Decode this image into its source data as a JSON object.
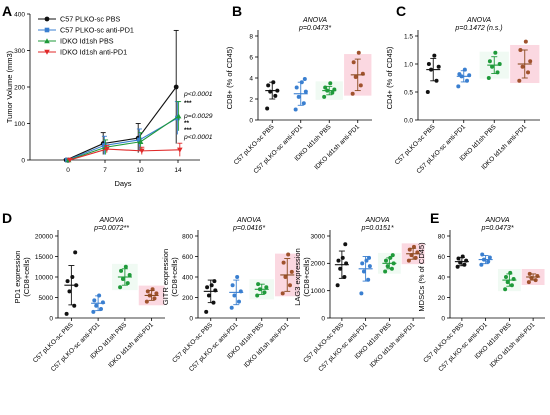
{
  "colors": {
    "black": "#111111",
    "blue": "#3a7fd0",
    "green": "#1f9a3a",
    "red": "#e02a2a",
    "pink": "#f9c7d4",
    "bg_mint": "#e9f8ee"
  },
  "panels": {
    "A": "A",
    "B": "B",
    "C": "C",
    "D": "D",
    "E": "E"
  },
  "chart_data": [
    {
      "id": "A",
      "type": "line",
      "xlabel": "Days",
      "ylabel": "Tumor Volume (mm3)",
      "x": [
        0,
        7,
        10,
        14
      ],
      "ylim": [
        0,
        400
      ],
      "yticks": [
        0,
        100,
        200,
        300,
        400
      ],
      "series": [
        {
          "name": "C57 PLKO-sc PBS",
          "color": "#111111",
          "marker": "circle",
          "values": [
            0,
            45,
            60,
            200
          ],
          "err": [
            2,
            30,
            40,
            155
          ]
        },
        {
          "name": "C57 PLKO-sc anti-PD1",
          "color": "#3a7fd0",
          "marker": "square",
          "values": [
            0,
            40,
            55,
            115
          ],
          "err": [
            2,
            25,
            30,
            45
          ]
        },
        {
          "name": "IDKO Id1sh PBS",
          "color": "#1f9a3a",
          "marker": "triangle-up",
          "values": [
            0,
            35,
            50,
            120
          ],
          "err": [
            2,
            20,
            25,
            40
          ]
        },
        {
          "name": "IDKO Id1sh anti-PD1",
          "color": "#e02a2a",
          "marker": "triangle-down",
          "values": [
            0,
            30,
            25,
            28
          ],
          "err": [
            2,
            10,
            10,
            18
          ]
        }
      ],
      "annotations": [
        {
          "text": "p<0.0001",
          "color": "#111111"
        },
        {
          "text": "***",
          "color": "#111111"
        },
        {
          "text": "p=0.0029",
          "color": "#111111"
        },
        {
          "text": "**",
          "color": "#3a7fd0"
        },
        {
          "text": "***",
          "color": "#1f9a3a"
        },
        {
          "text": "p<0.0001",
          "color": "#111111"
        }
      ]
    },
    {
      "id": "B",
      "type": "scatter",
      "title": "ANOVA",
      "subtitle": "p=0.0473*",
      "ylabel": "CD8+ (% of CD45)",
      "ylim": [
        0,
        8
      ],
      "yticks": [
        0,
        2,
        4,
        6,
        8
      ],
      "categories": [
        "C57 pLKO-sc PBS",
        "C57 pLKO-sc anti-PD1",
        "IDKO Id1sh PBS",
        "IDKO Id1sh anti-PD1"
      ],
      "groups": [
        {
          "mean": 2.8,
          "sd": 0.8,
          "points": [
            1.1,
            2.3,
            2.7,
            2.8,
            3.3,
            3.6
          ]
        },
        {
          "mean": 2.5,
          "sd": 1.1,
          "points": [
            1.0,
            1.6,
            2.2,
            2.7,
            3.1,
            3.6,
            3.9
          ]
        },
        {
          "mean": 2.8,
          "sd": 0.4,
          "points": [
            2.2,
            2.6,
            2.8,
            2.9,
            3.1,
            3.5
          ]
        },
        {
          "mean": 4.3,
          "sd": 1.5,
          "points": [
            2.5,
            3.3,
            4.1,
            4.4,
            5.5,
            6.4
          ]
        }
      ]
    },
    {
      "id": "C",
      "type": "scatter",
      "title": "ANOVA",
      "subtitle": "p=0.1472 (n.s.)",
      "ylabel": "CD4+ (% of CD45)",
      "ylim": [
        0,
        1.5
      ],
      "yticks": [
        0.0,
        0.5,
        1.0,
        1.5
      ],
      "categories": [
        "C57 pLKO-sc PBS",
        "C57 pLKO-sc anti-PD1",
        "IDKO Id1sh PBS",
        "IDKO Id1sh anti-PD1"
      ],
      "groups": [
        {
          "mean": 0.9,
          "sd": 0.2,
          "points": [
            0.5,
            0.7,
            0.9,
            0.95,
            1.0,
            1.15
          ]
        },
        {
          "mean": 0.78,
          "sd": 0.1,
          "points": [
            0.6,
            0.7,
            0.78,
            0.8,
            0.82,
            0.9
          ]
        },
        {
          "mean": 0.98,
          "sd": 0.15,
          "points": [
            0.75,
            0.85,
            0.95,
            1.0,
            1.05,
            1.2
          ]
        },
        {
          "mean": 1.0,
          "sd": 0.25,
          "points": [
            0.7,
            0.85,
            0.95,
            1.05,
            1.25,
            1.4
          ]
        }
      ]
    },
    {
      "id": "D1",
      "type": "scatter",
      "title": "ANOVA",
      "subtitle": "p=0.0072**",
      "ylabel": "PD1 expression (CD8+cells)",
      "ylim": [
        0,
        20000
      ],
      "yticks": [
        0,
        5000,
        10000,
        15000,
        20000
      ],
      "categories": [
        "C57 pLKO-sc PBS",
        "C57 pLKO-sc anti-PD1",
        "IDKO Id1sh PBS",
        "IDKO Id1sh anti-PD1"
      ],
      "groups": [
        {
          "mean": 8000,
          "sd": 4800,
          "points": [
            1000,
            3000,
            6500,
            8000,
            9000,
            10000,
            16000
          ]
        },
        {
          "mean": 3600,
          "sd": 1800,
          "points": [
            1500,
            2200,
            3000,
            3800,
            4300,
            5500
          ]
        },
        {
          "mean": 10000,
          "sd": 2000,
          "points": [
            7500,
            8500,
            9500,
            10500,
            11500,
            12500
          ]
        },
        {
          "mean": 5500,
          "sd": 1200,
          "points": [
            4000,
            4800,
            5500,
            6000,
            6500,
            7000
          ]
        }
      ]
    },
    {
      "id": "D2",
      "type": "scatter",
      "title": "ANOVA",
      "subtitle": "p=0.0416*",
      "ylabel": "GITR expression (CD8+cells)",
      "ylim": [
        0,
        800
      ],
      "yticks": [
        0,
        200,
        400,
        600,
        800
      ],
      "categories": [
        "C57 pLKO-sc PBS",
        "C57 pLKO-sc anti-PD1",
        "IDKO Id1sh PBS",
        "IDKO Id1sh anti-PD1"
      ],
      "groups": [
        {
          "mean": 260,
          "sd": 110,
          "points": [
            60,
            150,
            220,
            270,
            300,
            320,
            360
          ]
        },
        {
          "mean": 250,
          "sd": 120,
          "points": [
            100,
            160,
            220,
            260,
            320,
            400
          ]
        },
        {
          "mean": 280,
          "sd": 50,
          "points": [
            220,
            250,
            280,
            300,
            330
          ]
        },
        {
          "mean": 420,
          "sd": 160,
          "points": [
            240,
            320,
            400,
            450,
            540,
            620
          ]
        }
      ]
    },
    {
      "id": "D3",
      "type": "scatter",
      "title": "ANOVA",
      "subtitle": "p=0.0151*",
      "ylabel": "LAG3 expression (CD8+cells)",
      "ylim": [
        0,
        3000
      ],
      "yticks": [
        0,
        1000,
        2000,
        3000
      ],
      "categories": [
        "C57 pLKO-sc PBS",
        "C57 pLKO-sc anti-PD1",
        "IDKO Id1sh PBS",
        "IDKO Id1sh anti-PD1"
      ],
      "groups": [
        {
          "mean": 1950,
          "sd": 500,
          "points": [
            1200,
            1500,
            1800,
            2000,
            2100,
            2200,
            2700
          ]
        },
        {
          "mean": 1800,
          "sd": 450,
          "points": [
            900,
            1400,
            1700,
            1900,
            2000,
            2100,
            2200
          ]
        },
        {
          "mean": 2000,
          "sd": 200,
          "points": [
            1700,
            1800,
            1900,
            2000,
            2100,
            2200,
            2300
          ]
        },
        {
          "mean": 2350,
          "sd": 200,
          "points": [
            2100,
            2200,
            2300,
            2400,
            2500,
            2600
          ]
        }
      ]
    },
    {
      "id": "E",
      "type": "scatter",
      "title": "ANOVA",
      "subtitle": "p=0.0473*",
      "ylabel": "MDSCs (% of CD45)",
      "ylim": [
        0,
        80
      ],
      "yticks": [
        0,
        20,
        40,
        60,
        80
      ],
      "categories": [
        "C57 pLKO-sc PBS",
        "C57 pLKO-sc anti-PD1",
        "IDKO Id1sh PBS",
        "IDKO Id1sh anti-PD1"
      ],
      "groups": [
        {
          "mean": 55,
          "sd": 4,
          "points": [
            50,
            52,
            54,
            56,
            58,
            60
          ]
        },
        {
          "mean": 57,
          "sd": 4,
          "points": [
            52,
            55,
            57,
            59,
            62
          ]
        },
        {
          "mean": 37,
          "sd": 6,
          "points": [
            28,
            32,
            35,
            38,
            40,
            44
          ]
        },
        {
          "mean": 40,
          "sd": 3,
          "points": [
            35,
            37,
            39,
            41,
            43
          ]
        }
      ]
    }
  ]
}
